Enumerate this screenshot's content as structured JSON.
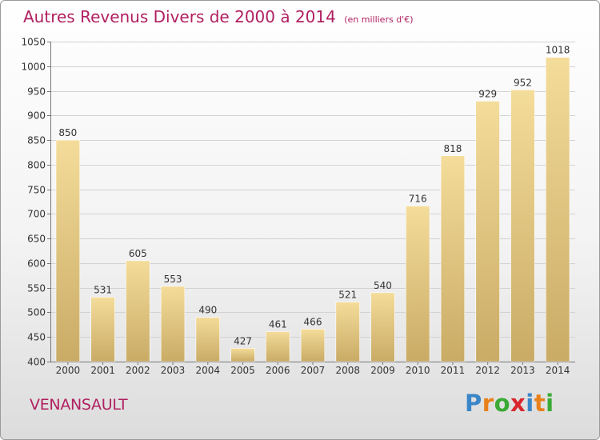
{
  "chart_data": {
    "type": "bar",
    "title": "Autres Revenus Divers de 2000 à 2014",
    "subtitle": "(en milliers d'€)",
    "categories": [
      "2000",
      "2001",
      "2002",
      "2003",
      "2004",
      "2005",
      "2006",
      "2007",
      "2008",
      "2009",
      "2010",
      "2011",
      "2012",
      "2013",
      "2014"
    ],
    "values": [
      850,
      531,
      605,
      553,
      490,
      427,
      461,
      466,
      521,
      540,
      716,
      818,
      929,
      952,
      1018
    ],
    "ylim": [
      400,
      1050
    ],
    "yticks": [
      400,
      450,
      500,
      550,
      600,
      650,
      700,
      750,
      800,
      850,
      900,
      950,
      1000,
      1050
    ],
    "grid": true,
    "bar_color_light": "#f4dc9a",
    "bar_color_dark": "#c9ab65"
  },
  "footer": {
    "place": "VENANSAULT",
    "brand": "Proxiti",
    "brand_letters": [
      {
        "char": "P",
        "color": "#3a86c8"
      },
      {
        "char": "r",
        "color": "#e8811a"
      },
      {
        "char": "o",
        "color": "#3aaa35"
      },
      {
        "char": "x",
        "color": "#d9262c"
      },
      {
        "char": "i",
        "color": "#3a86c8"
      },
      {
        "char": "t",
        "color": "#e8811a"
      },
      {
        "char": "i",
        "color": "#3aaa35"
      }
    ]
  },
  "colors": {
    "title": "#b02060",
    "text": "#333333"
  }
}
